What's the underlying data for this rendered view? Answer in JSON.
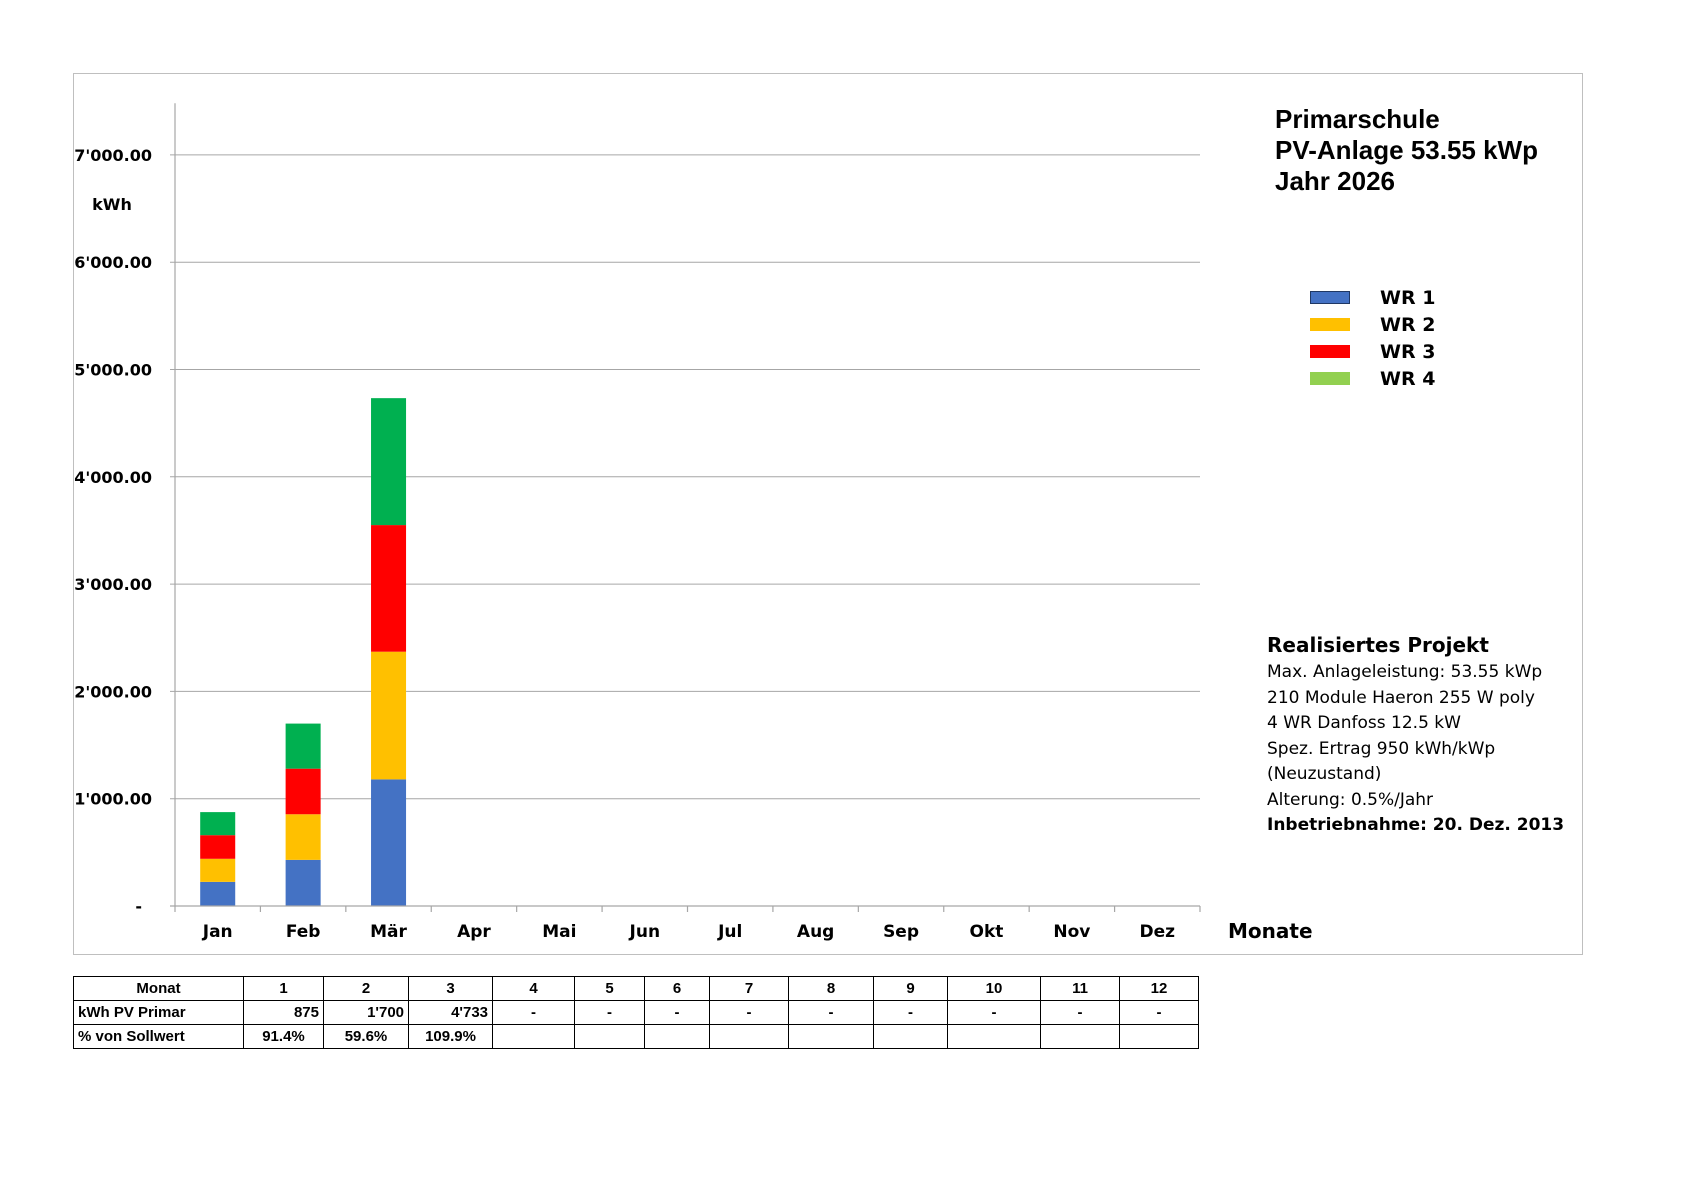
{
  "title": {
    "line1": "Primarschule",
    "line2": "PV-Anlage 53.55 kWp",
    "line3": "Jahr 2026"
  },
  "colors": {
    "WR 1": "#4472C4",
    "WR 2": "#FFC000",
    "WR 3": "#FF0000",
    "WR 4": "#00B050",
    "legend_WR4": "#92D050",
    "grid": "#a6a6a6"
  },
  "chart_data": {
    "type": "bar",
    "stacked": true,
    "ylabel": "kWh",
    "xlabel": "Monate",
    "ylim": [
      0,
      7500
    ],
    "yticks": [
      0,
      1000,
      2000,
      3000,
      4000,
      5000,
      6000,
      7000
    ],
    "ytick_labels": [
      "-",
      "1'000.00",
      "2'000.00",
      "3'000.00",
      "4'000.00",
      "5'000.00",
      "6'000.00",
      "7'000.00"
    ],
    "categories": [
      "Jan",
      "Feb",
      "Mär",
      "Apr",
      "Mai",
      "Jun",
      "Jul",
      "Aug",
      "Sep",
      "Okt",
      "Nov",
      "Dez"
    ],
    "series": [
      {
        "name": "WR 1",
        "values": [
          225,
          430,
          1180,
          0,
          0,
          0,
          0,
          0,
          0,
          0,
          0,
          0
        ]
      },
      {
        "name": "WR 2",
        "values": [
          215,
          425,
          1190,
          0,
          0,
          0,
          0,
          0,
          0,
          0,
          0,
          0
        ]
      },
      {
        "name": "WR 3",
        "values": [
          220,
          425,
          1180,
          0,
          0,
          0,
          0,
          0,
          0,
          0,
          0,
          0
        ]
      },
      {
        "name": "WR 4",
        "values": [
          215,
          420,
          1183,
          0,
          0,
          0,
          0,
          0,
          0,
          0,
          0,
          0
        ]
      }
    ],
    "grid": true,
    "legend_position": "right"
  },
  "legend": {
    "items": [
      "WR 1",
      "WR 2",
      "WR 3",
      "WR 4"
    ]
  },
  "project": {
    "title": "Realisiertes Projekt",
    "lines": [
      "Max. Anlageleistung: 53.55 kWp",
      "210 Module Haeron 255 W poly",
      "4 WR Danfoss 12.5 kW",
      "Spez. Ertrag 950 kWh/kWp",
      "(Neuzustand)",
      "Alterung: 0.5%/Jahr"
    ],
    "commissioning": "Inbetriebnahme: 20. Dez. 2013"
  },
  "table": {
    "row_labels": [
      "Monat",
      "kWh PV Primar",
      "% von Sollwert"
    ],
    "months": [
      "1",
      "2",
      "3",
      "4",
      "5",
      "6",
      "7",
      "8",
      "9",
      "10",
      "11",
      "12"
    ],
    "kwh": [
      "875",
      "1'700",
      "4'733",
      "-",
      "-",
      "-",
      "-",
      "-",
      "-",
      "-",
      "-",
      "-"
    ],
    "percent": [
      "91.4%",
      "59.6%",
      "109.9%",
      "",
      "",
      "",
      "",
      "",
      "",
      "",
      "",
      ""
    ]
  }
}
